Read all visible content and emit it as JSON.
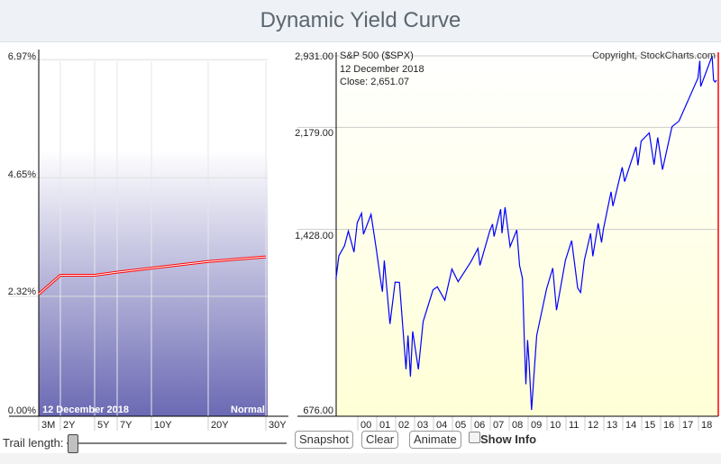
{
  "title": "Dynamic Yield Curve",
  "yield_curve": {
    "y_ticks": [
      "0.00%",
      "2.32%",
      "4.65%",
      "6.97%"
    ],
    "maturities": [
      "3M",
      "2Y",
      "5Y",
      "7Y",
      "10Y",
      "20Y",
      "30Y"
    ],
    "yields": [
      2.4,
      2.77,
      2.77,
      2.83,
      2.91,
      3.04,
      3.13
    ],
    "date": "12  December 2018",
    "shape": "Normal",
    "curve_color": "#ff0000"
  },
  "spx": {
    "title": "S&P 500 ($SPX)",
    "copyright": "Copyright, StockCharts.com",
    "date": "12  December 2018",
    "close": "Close: 2,651.07",
    "y_ticks": [
      "2,931.00",
      "2,179.00",
      "1,428.00",
      "676.00"
    ],
    "x_ticks": [
      "00",
      "01",
      "02",
      "03",
      "04",
      "05",
      "06",
      "07",
      "08",
      "09",
      "10",
      "11",
      "12",
      "13",
      "14",
      "15",
      "16",
      "17",
      "18"
    ],
    "line_color": "#0000ff",
    "series": [
      [
        1998.85,
        1163
      ],
      [
        1999.0,
        1280
      ],
      [
        1999.3,
        1335
      ],
      [
        1999.5,
        1418
      ],
      [
        1999.8,
        1300
      ],
      [
        1999.97,
        1469
      ],
      [
        2000.2,
        1527
      ],
      [
        2000.3,
        1400
      ],
      [
        2000.7,
        1520
      ],
      [
        2000.97,
        1320
      ],
      [
        2001.2,
        1160
      ],
      [
        2001.3,
        1103
      ],
      [
        2001.4,
        1255
      ],
      [
        2001.7,
        965
      ],
      [
        2001.97,
        1148
      ],
      [
        2002.2,
        1147
      ],
      [
        2002.55,
        800
      ],
      [
        2002.65,
        920
      ],
      [
        2002.78,
        776
      ],
      [
        2002.9,
        936
      ],
      [
        2003.2,
        800
      ],
      [
        2003.45,
        975
      ],
      [
        2003.97,
        1111
      ],
      [
        2004.2,
        1126
      ],
      [
        2004.6,
        1065
      ],
      [
        2004.97,
        1212
      ],
      [
        2005.3,
        1150
      ],
      [
        2005.97,
        1248
      ],
      [
        2006.35,
        1320
      ],
      [
        2006.45,
        1230
      ],
      [
        2006.97,
        1418
      ],
      [
        2007.12,
        1460
      ],
      [
        2007.2,
        1387
      ],
      [
        2007.55,
        1553
      ],
      [
        2007.62,
        1406
      ],
      [
        2007.78,
        1565
      ],
      [
        2008.05,
        1330
      ],
      [
        2008.4,
        1425
      ],
      [
        2008.55,
        1230
      ],
      [
        2008.7,
        1166
      ],
      [
        2008.8,
        900
      ],
      [
        2008.88,
        752
      ],
      [
        2008.97,
        903
      ],
      [
        2009.05,
        825
      ],
      [
        2009.18,
        676
      ],
      [
        2009.45,
        920
      ],
      [
        2009.97,
        1115
      ],
      [
        2010.3,
        1217
      ],
      [
        2010.5,
        1022
      ],
      [
        2010.97,
        1257
      ],
      [
        2011.3,
        1363
      ],
      [
        2011.62,
        1120
      ],
      [
        2011.77,
        1100
      ],
      [
        2011.97,
        1257
      ],
      [
        2012.3,
        1405
      ],
      [
        2012.42,
        1278
      ],
      [
        2012.7,
        1465
      ],
      [
        2012.88,
        1353
      ],
      [
        2012.97,
        1426
      ],
      [
        2013.38,
        1669
      ],
      [
        2013.48,
        1573
      ],
      [
        2013.97,
        1848
      ],
      [
        2014.1,
        1741
      ],
      [
        2014.7,
        2011
      ],
      [
        2014.8,
        1862
      ],
      [
        2014.97,
        2058
      ],
      [
        2015.4,
        2130
      ],
      [
        2015.65,
        1867
      ],
      [
        2015.85,
        2090
      ],
      [
        2016.1,
        1829
      ],
      [
        2016.6,
        2185
      ],
      [
        2016.97,
        2238
      ],
      [
        2017.97,
        2673
      ],
      [
        2018.07,
        2872
      ],
      [
        2018.12,
        2581
      ],
      [
        2018.72,
        2930
      ],
      [
        2018.8,
        2650
      ],
      [
        2018.88,
        2630
      ],
      [
        2018.95,
        2651
      ]
    ]
  },
  "controls": {
    "trail_label": "Trail length:",
    "snapshot": "Snapshot",
    "clear": "Clear",
    "animate": "Animate",
    "show_info": "Show Info",
    "trail_value": 0
  }
}
